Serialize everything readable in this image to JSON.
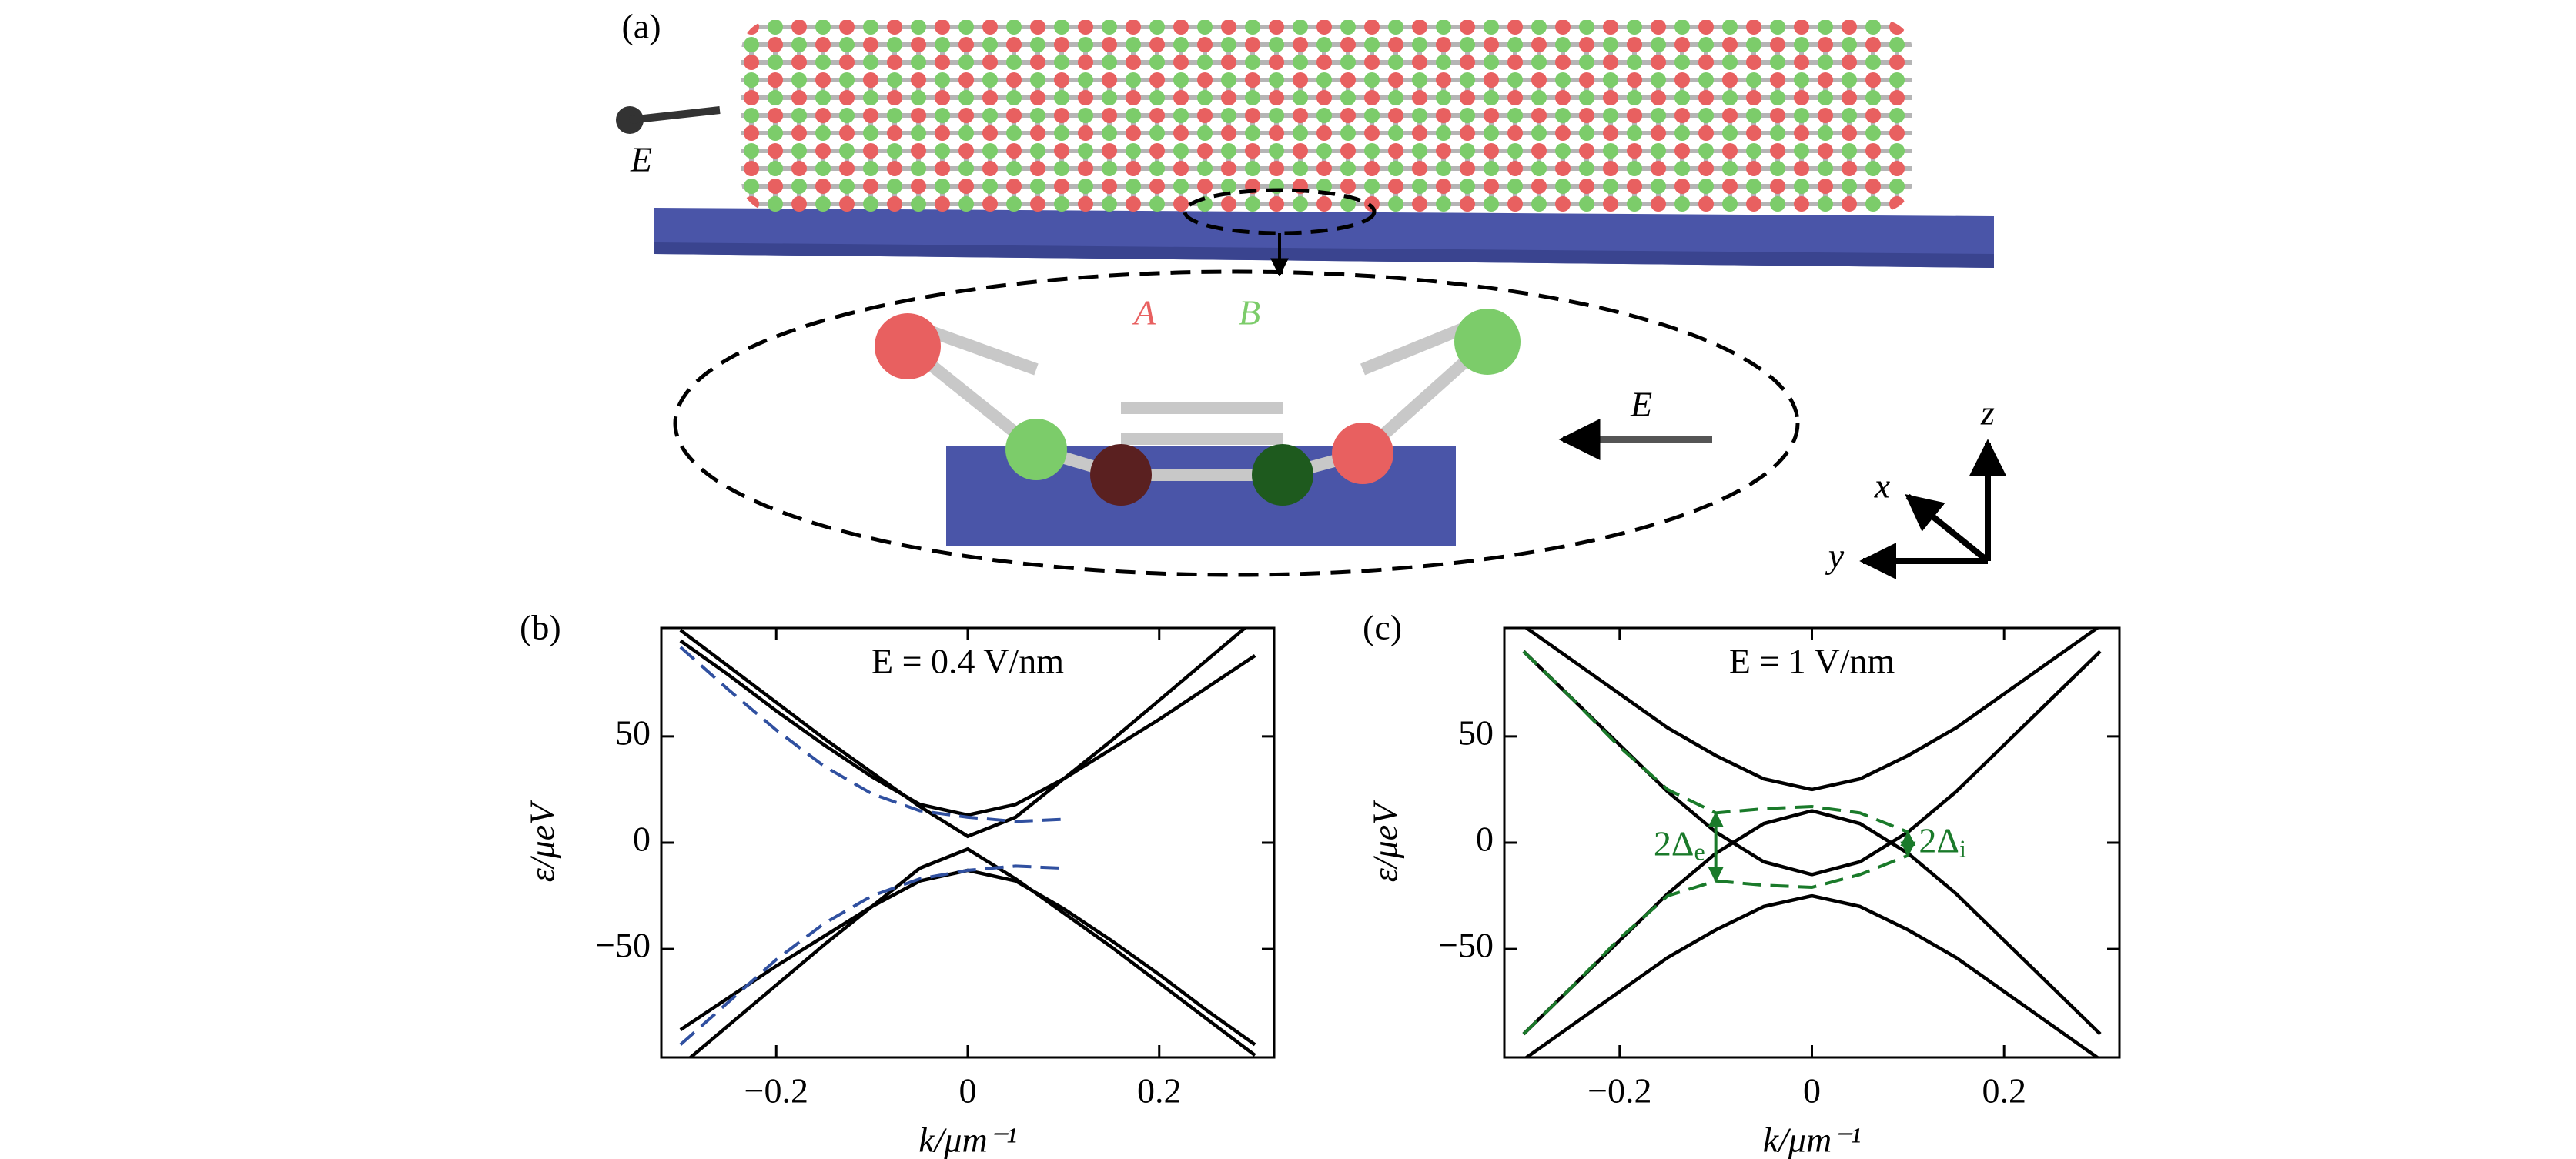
{
  "figure": {
    "panel_a": {
      "label": "(a)",
      "field_left": "E",
      "sublattice_a": "A",
      "sublattice_b": "B",
      "field_inset": "E",
      "axis_x": "x",
      "axis_y": "y",
      "axis_z": "z"
    }
  },
  "chart_data": [
    {
      "type": "line",
      "panel": "(b)",
      "title": "E = 0.4 V/nm",
      "x_label": "k/μm⁻¹",
      "y_label": "ε/μeV",
      "x": [
        -0.3,
        -0.25,
        -0.2,
        -0.15,
        -0.1,
        -0.05,
        0,
        0.05,
        0.1,
        0.15,
        0.2,
        0.25,
        0.3
      ],
      "xlim": [
        -0.32,
        0.32
      ],
      "xticks": [
        {
          "value": -0.2,
          "label": "−0.2"
        },
        0,
        0.2
      ],
      "ylim": [
        -101,
        101
      ],
      "yticks": [
        50,
        0,
        {
          "value": -50,
          "label": "−50"
        }
      ],
      "series": [
        {
          "color": "#000000",
          "dashed": false,
          "values": [
            95,
            79,
            62,
            46,
            31,
            18,
            13,
            18,
            30,
            44,
            58,
            73,
            88
          ]
        },
        {
          "color": "#000000",
          "dashed": false,
          "values": [
            100,
            83,
            66,
            49,
            33,
            17,
            3,
            12,
            30,
            48,
            67,
            86,
            105
          ]
        },
        {
          "color": "#000000",
          "dashed": false,
          "values": [
            -88,
            -73,
            -58,
            -44,
            -30,
            -18,
            -13,
            -18,
            -31,
            -46,
            -62,
            -79,
            -95
          ]
        },
        {
          "color": "#000000",
          "dashed": false,
          "values": [
            -105,
            -86,
            -67,
            -48,
            -30,
            -12,
            -3,
            -17,
            -33,
            -49,
            -66,
            -83,
            -100
          ]
        },
        {
          "color": "#3050a0",
          "dashed": true,
          "values": [
            92,
            72,
            53,
            36,
            23,
            15,
            12,
            10,
            11,
            null,
            null,
            null,
            null
          ]
        },
        {
          "color": "#3050a0",
          "dashed": true,
          "values": [
            -95,
            -75,
            -55,
            -38,
            -25,
            -17,
            -13,
            -11,
            -12,
            null,
            null,
            null,
            null
          ]
        }
      ],
      "annotations": []
    },
    {
      "type": "line",
      "panel": "(c)",
      "title": "E = 1 V/nm",
      "x_label": "k/μm⁻¹",
      "y_label": "ε/μeV",
      "x": [
        -0.3,
        -0.25,
        -0.2,
        -0.15,
        -0.1,
        -0.05,
        0,
        0.05,
        0.1,
        0.15,
        0.2,
        0.25,
        0.3
      ],
      "xlim": [
        -0.32,
        0.32
      ],
      "xticks": [
        {
          "value": -0.2,
          "label": "−0.2"
        },
        0,
        0.2
      ],
      "ylim": [
        -101,
        101
      ],
      "yticks": [
        50,
        0,
        {
          "value": -50,
          "label": "−50"
        }
      ],
      "series": [
        {
          "color": "#000000",
          "dashed": false,
          "values": [
            102,
            86,
            70,
            54,
            41,
            30,
            25,
            30,
            41,
            54,
            70,
            86,
            102
          ]
        },
        {
          "color": "#000000",
          "dashed": false,
          "values": [
            90,
            68,
            46,
            24,
            5,
            -9,
            -15,
            -9,
            5,
            24,
            46,
            68,
            90
          ]
        },
        {
          "color": "#000000",
          "dashed": false,
          "values": [
            -90,
            -68,
            -46,
            -24,
            -5,
            9,
            15,
            9,
            -5,
            -24,
            -46,
            -68,
            -90
          ]
        },
        {
          "color": "#000000",
          "dashed": false,
          "values": [
            -102,
            -86,
            -70,
            -54,
            -41,
            -30,
            -25,
            -30,
            -41,
            -54,
            -70,
            -86,
            -102
          ]
        },
        {
          "color": "#1a7a2a",
          "dashed": true,
          "values": [
            90,
            68,
            45,
            25,
            14,
            16,
            17,
            14,
            5,
            null,
            null,
            null,
            null
          ]
        },
        {
          "color": "#1a7a2a",
          "dashed": true,
          "values": [
            -90,
            -68,
            -45,
            -25,
            -18,
            -20,
            -21,
            -15,
            -6,
            null,
            null,
            null,
            null
          ]
        }
      ],
      "annotations": [
        {
          "text": "2Δ",
          "sub": "e",
          "color": "#1a7a2a",
          "x": -0.1,
          "y": [
            14,
            -18
          ]
        },
        {
          "text": "2Δ",
          "sub": "i",
          "color": "#1a7a2a",
          "x": 0.1,
          "y": [
            5,
            -6
          ]
        }
      ]
    }
  ]
}
